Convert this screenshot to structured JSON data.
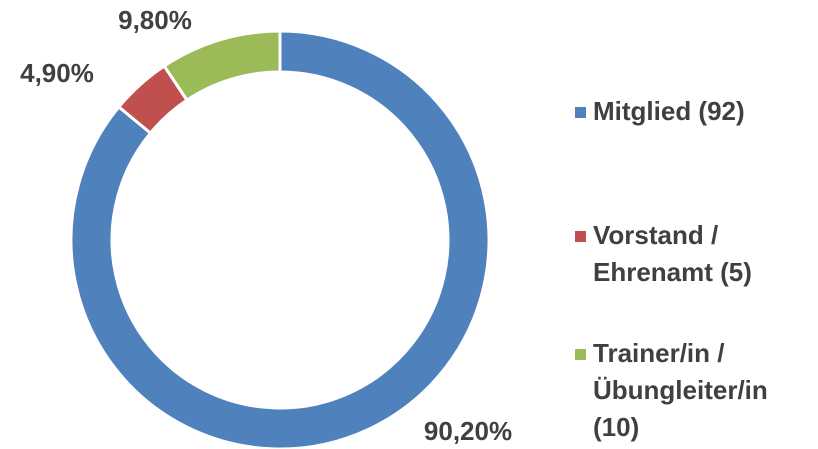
{
  "chart_data": {
    "type": "pie",
    "donut": true,
    "categories": [
      "Mitglied (92)",
      "Vorstand / Ehrenamt (5)",
      "Trainer/in /Übungleiter/in (10)"
    ],
    "values": [
      90.2,
      4.9,
      9.8
    ],
    "value_labels": [
      "90,20%",
      "4,90%",
      "9,80%"
    ],
    "colors": [
      "#4f81bd",
      "#c0504d",
      "#9bbb59"
    ],
    "legend": "right"
  }
}
